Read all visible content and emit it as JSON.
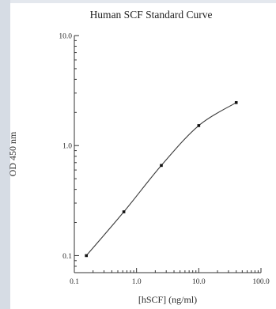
{
  "chart_data": {
    "type": "scatter",
    "title": "Human SCF Standard Curve",
    "xlabel": "[hSCF] (ng/ml)",
    "ylabel": "OD 450 nm",
    "x_scale": "log",
    "y_scale": "log",
    "xlim": [
      0.1,
      100
    ],
    "ylim": [
      0.07,
      10
    ],
    "x_ticks": [
      "0.1",
      "1.0",
      "10.0",
      "100.0"
    ],
    "y_ticks": [
      "0.1",
      "1.0",
      "10.0"
    ],
    "grid": false,
    "series": [
      {
        "x": [
          0.156,
          0.625,
          2.5,
          10,
          40
        ],
        "y": [
          0.1,
          0.25,
          0.66,
          1.52,
          2.46
        ]
      }
    ],
    "colors": {
      "line": "#3a3a3a",
      "marker": "#111111",
      "axis": "#333333",
      "gutter": "#d6dce4"
    }
  }
}
